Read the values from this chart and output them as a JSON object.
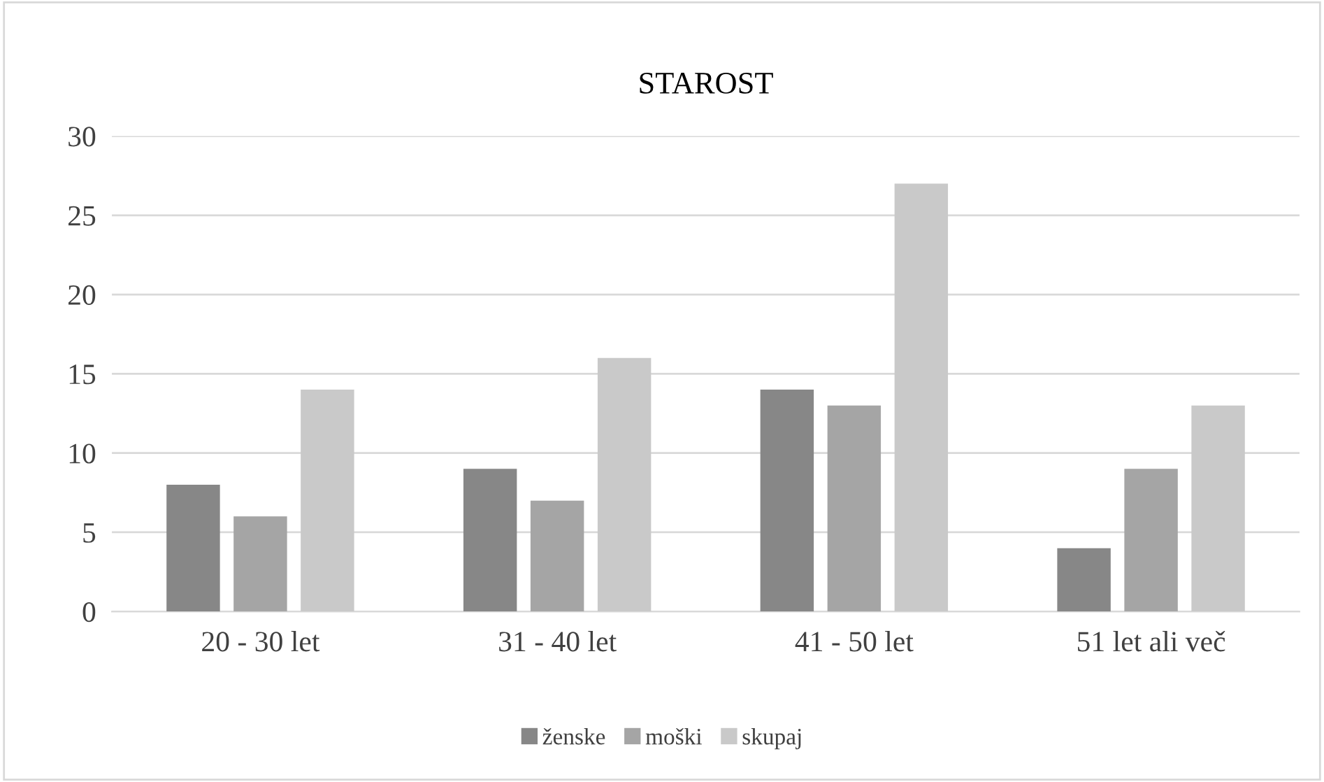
{
  "chart_data": {
    "type": "bar",
    "title": "STAROST",
    "categories": [
      "20 - 30 let",
      "31 - 40 let",
      "41 - 50 let",
      "51 let ali več"
    ],
    "series": [
      {
        "name": "ženske",
        "color": "#878787",
        "values": [
          8,
          9,
          14,
          4
        ]
      },
      {
        "name": "moški",
        "color": "#a5a5a5",
        "values": [
          6,
          7,
          13,
          9
        ]
      },
      {
        "name": "skupaj",
        "color": "#c9c9c9",
        "values": [
          14,
          16,
          27,
          13
        ]
      }
    ],
    "ylim": [
      0,
      30
    ],
    "yticks": [
      0,
      5,
      10,
      15,
      20,
      25,
      30
    ],
    "grid": "y",
    "legend": "bottom"
  }
}
